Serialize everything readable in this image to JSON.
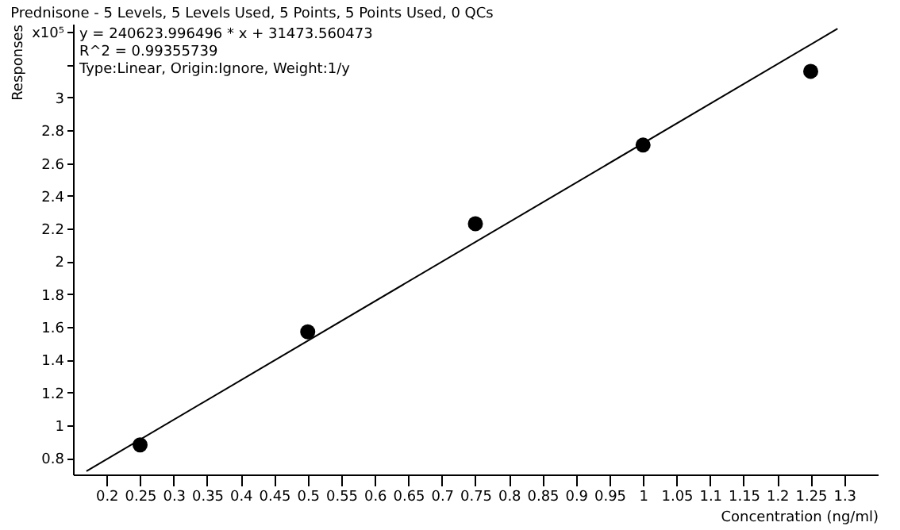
{
  "chart_data": {
    "type": "scatter",
    "title": "Prednisone - 5 Levels, 5 Levels Used, 5 Points, 5 Points Used, 0 QCs",
    "xlabel": "Concentration (ng/ml)",
    "ylabel": "Responses",
    "annotations": [
      "y = 240623.996496 * x  + 31473.560473",
      "R^2 = 0.99355739",
      "Type:Linear, Origin:Ignore, Weight:1/y"
    ],
    "series": [
      {
        "color": "#000000",
        "x": [
          0.25,
          0.5,
          0.75,
          1.0,
          1.25
        ],
        "values": [
          0.88,
          1.57,
          2.23,
          2.71,
          3.16
        ],
        "marker": "circle"
      },
      {
        "type": "line",
        "color": "#000000",
        "x": [
          0.17,
          1.29
        ],
        "values": [
          0.72,
          3.42
        ],
        "marker": "none",
        "line_style": "solid"
      }
    ],
    "xlim": [
      0.15,
      1.35
    ],
    "xticks": [
      0.2,
      0.25,
      0.3,
      0.35,
      0.4,
      0.45,
      0.5,
      0.55,
      0.6,
      0.65,
      0.7,
      0.75,
      0.8,
      0.85,
      0.9,
      0.95,
      1,
      1.05,
      1.1,
      1.15,
      1.2,
      1.25,
      1.3
    ],
    "ylim": [
      0.7,
      3.45
    ],
    "yticks": [
      0.8,
      1,
      1.2,
      1.4,
      1.6,
      1.8,
      2,
      2.2,
      2.4,
      2.6,
      2.8,
      3,
      {
        "value": 3.2,
        "label": null
      },
      {
        "value": 3.4,
        "label": "x10⁵"
      }
    ],
    "grid": false
  }
}
